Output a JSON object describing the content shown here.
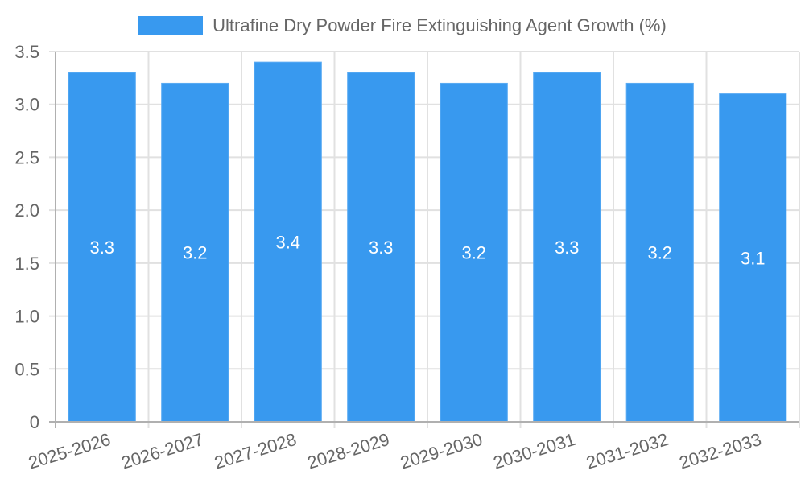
{
  "legend": {
    "label": "Ultrafine Dry Powder Fire Extinguishing Agent Growth (%)",
    "color": "#3899ef"
  },
  "y_axis": {
    "ticks": [
      "0",
      "0.5",
      "1.0",
      "1.5",
      "2.0",
      "2.5",
      "3.0",
      "3.5"
    ]
  },
  "chart_data": {
    "type": "bar",
    "title": "",
    "xlabel": "",
    "ylabel": "",
    "categories": [
      "2025-2026",
      "2026-2027",
      "2027-2028",
      "2028-2029",
      "2029-2030",
      "2030-2031",
      "2031-2032",
      "2032-2033"
    ],
    "series": [
      {
        "name": "Ultrafine Dry Powder Fire Extinguishing Agent Growth (%)",
        "color": "#3899ef",
        "values": [
          3.3,
          3.2,
          3.4,
          3.3,
          3.2,
          3.3,
          3.2,
          3.1
        ],
        "data_labels": [
          "3.3",
          "3.2",
          "3.4",
          "3.3",
          "3.2",
          "3.3",
          "3.2",
          "3.1"
        ]
      }
    ],
    "ylim": [
      0,
      3.5
    ],
    "y_ticks": [
      0,
      0.5,
      1.0,
      1.5,
      2.0,
      2.5,
      3.0,
      3.5
    ],
    "grid": true,
    "legend_position": "top"
  }
}
